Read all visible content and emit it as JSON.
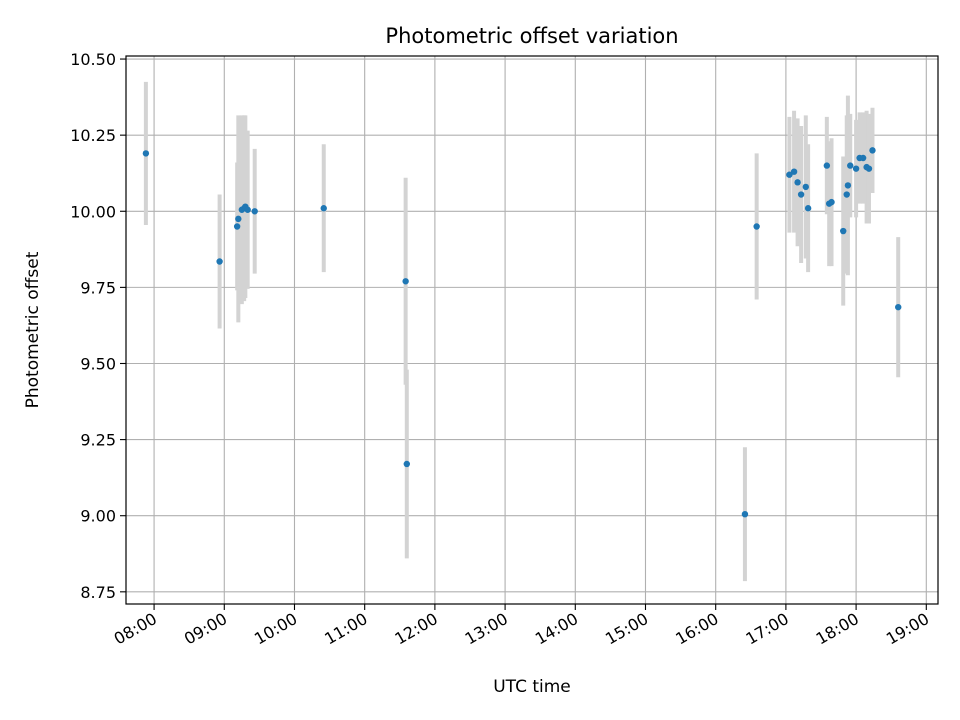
{
  "chart_data": {
    "type": "scatter",
    "title": "Photometric offset variation",
    "xlabel": "UTC time",
    "ylabel": "Photometric offset",
    "xlim": [
      "07:36",
      "19:10"
    ],
    "ylim": [
      8.71,
      10.51
    ],
    "x_ticks": [
      "08:00",
      "09:00",
      "10:00",
      "11:00",
      "12:00",
      "13:00",
      "14:00",
      "15:00",
      "16:00",
      "17:00",
      "18:00",
      "19:00"
    ],
    "y_ticks": [
      "8.75",
      "9.00",
      "9.25",
      "9.50",
      "9.75",
      "10.00",
      "10.25",
      "10.50"
    ],
    "grid": true,
    "marker_color": "#1f77b4",
    "errorbar_color": "#d3d3d3",
    "points": [
      {
        "x": "07:53",
        "y": 10.19,
        "yerr": 0.235
      },
      {
        "x": "08:56",
        "y": 9.835,
        "yerr": 0.22
      },
      {
        "x": "09:11",
        "y": 9.95,
        "yerr": 0.21
      },
      {
        "x": "09:12",
        "y": 9.975,
        "yerr": 0.34
      },
      {
        "x": "09:15",
        "y": 10.005,
        "yerr": 0.31
      },
      {
        "x": "09:17",
        "y": 10.01,
        "yerr": 0.305
      },
      {
        "x": "09:18",
        "y": 10.015,
        "yerr": 0.3
      },
      {
        "x": "09:20",
        "y": 10.005,
        "yerr": 0.26
      },
      {
        "x": "09:26",
        "y": 10.0,
        "yerr": 0.205
      },
      {
        "x": "10:25",
        "y": 10.01,
        "yerr": 0.21
      },
      {
        "x": "11:35",
        "y": 9.77,
        "yerr": 0.34
      },
      {
        "x": "11:36",
        "y": 9.17,
        "yerr": 0.31
      },
      {
        "x": "16:25",
        "y": 9.005,
        "yerr": 0.22
      },
      {
        "x": "16:35",
        "y": 9.95,
        "yerr": 0.24
      },
      {
        "x": "17:03",
        "y": 10.12,
        "yerr": 0.19
      },
      {
        "x": "17:07",
        "y": 10.13,
        "yerr": 0.2
      },
      {
        "x": "17:10",
        "y": 10.095,
        "yerr": 0.21
      },
      {
        "x": "17:13",
        "y": 10.055,
        "yerr": 0.225
      },
      {
        "x": "17:17",
        "y": 10.08,
        "yerr": 0.235
      },
      {
        "x": "17:19",
        "y": 10.01,
        "yerr": 0.21
      },
      {
        "x": "17:35",
        "y": 10.15,
        "yerr": 0.16
      },
      {
        "x": "17:37",
        "y": 10.025,
        "yerr": 0.205
      },
      {
        "x": "17:39",
        "y": 10.03,
        "yerr": 0.21
      },
      {
        "x": "17:49",
        "y": 9.935,
        "yerr": 0.245
      },
      {
        "x": "17:52",
        "y": 10.055,
        "yerr": 0.26
      },
      {
        "x": "17:53",
        "y": 10.085,
        "yerr": 0.295
      },
      {
        "x": "17:55",
        "y": 10.15,
        "yerr": 0.17
      },
      {
        "x": "18:00",
        "y": 10.14,
        "yerr": 0.16
      },
      {
        "x": "18:03",
        "y": 10.175,
        "yerr": 0.15
      },
      {
        "x": "18:06",
        "y": 10.175,
        "yerr": 0.15
      },
      {
        "x": "18:09",
        "y": 10.145,
        "yerr": 0.185
      },
      {
        "x": "18:11",
        "y": 10.14,
        "yerr": 0.18
      },
      {
        "x": "18:14",
        "y": 10.2,
        "yerr": 0.14
      },
      {
        "x": "18:36",
        "y": 9.685,
        "yerr": 0.23
      }
    ]
  }
}
